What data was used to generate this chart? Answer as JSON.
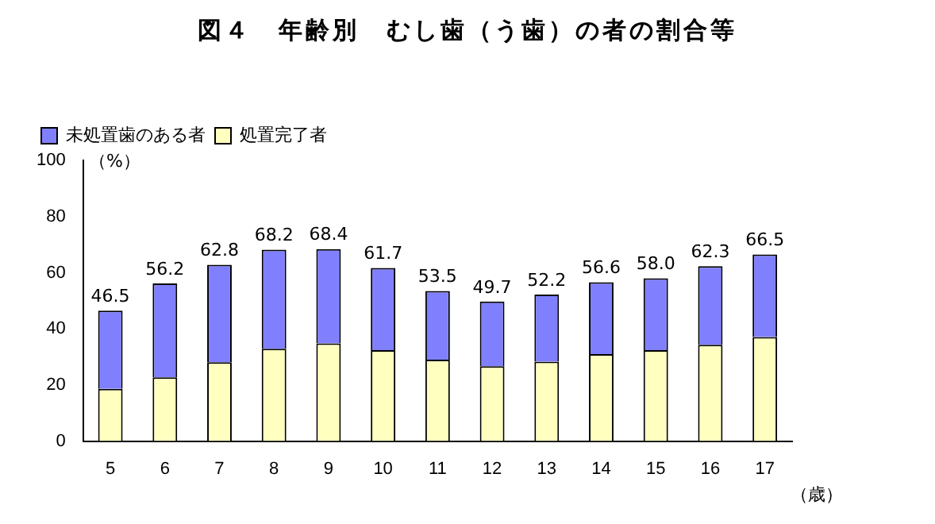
{
  "chart_data": {
    "type": "bar",
    "title": "図４　年齢別　むし歯（う歯）の者の割合等",
    "xlabel": "（歳）",
    "ylabel": "（%）",
    "categories": [
      "5",
      "6",
      "7",
      "8",
      "9",
      "10",
      "11",
      "12",
      "13",
      "14",
      "15",
      "16",
      "17"
    ],
    "stacked": true,
    "series": [
      {
        "name": "処置完了者",
        "color": "#ffffc0",
        "values": [
          18.6,
          22.7,
          28.1,
          32.9,
          34.8,
          32.4,
          29.0,
          26.7,
          28.3,
          31.0,
          32.4,
          34.3,
          37.1
        ]
      },
      {
        "name": "未処置歯のある者",
        "color": "#8080ff",
        "values": [
          27.9,
          33.5,
          34.7,
          35.3,
          33.6,
          29.3,
          24.5,
          23.0,
          23.9,
          25.6,
          25.6,
          28.0,
          29.4
        ]
      }
    ],
    "totals": [
      "46.5",
      "56.2",
      "62.8",
      "68.2",
      "68.4",
      "61.7",
      "53.5",
      "49.7",
      "52.2",
      "56.6",
      "58.0",
      "62.3",
      "66.5"
    ],
    "ylim": [
      0,
      100
    ],
    "yticks": [
      0,
      20,
      40,
      60,
      80,
      100
    ],
    "grid": false,
    "legend": "top left"
  }
}
